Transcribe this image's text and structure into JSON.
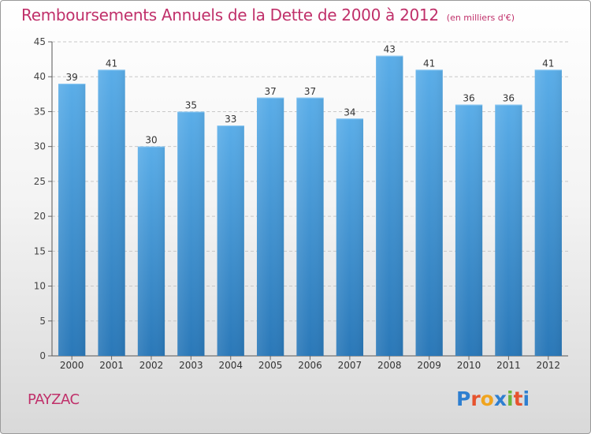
{
  "header": {
    "title": "Remboursements Annuels de la Dette de 2000 à 2012",
    "unit": "(en milliers d'€)"
  },
  "footer": {
    "commune": "PAYZAC",
    "logo": "Proxiti"
  },
  "colors": {
    "accent": "#c0306a",
    "bar_top": "#5aade8",
    "bar_bottom": "#2a78b8",
    "logo_letters": [
      "#2e7fd0",
      "#e6532e",
      "#f0a41e",
      "#2e7fd0",
      "#6bb63a",
      "#e6532e",
      "#2e7fd0"
    ]
  },
  "chart_data": {
    "type": "bar",
    "title": "Remboursements Annuels de la Dette de 2000 à 2012",
    "subtitle": "(en milliers d'€)",
    "categories": [
      "2000",
      "2001",
      "2002",
      "2003",
      "2004",
      "2005",
      "2006",
      "2007",
      "2008",
      "2009",
      "2010",
      "2011",
      "2012"
    ],
    "values": [
      39,
      41,
      30,
      35,
      33,
      37,
      37,
      34,
      43,
      41,
      36,
      36,
      41
    ],
    "ylim": [
      0,
      45
    ],
    "yticks": [
      0,
      5,
      10,
      15,
      20,
      25,
      30,
      35,
      40,
      45
    ],
    "grid": true,
    "data_labels": true
  }
}
